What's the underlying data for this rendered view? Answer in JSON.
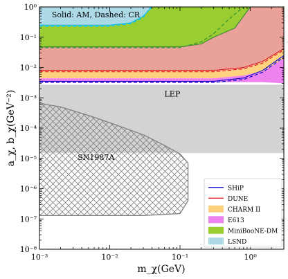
{
  "chart_data": {
    "type": "area",
    "xlabel": "m_χ(GeV)",
    "ylabel": "a_χ, b_χ(GeV⁻²)",
    "x_scale": "log",
    "y_scale": "log",
    "xlim": [
      0.001,
      3.0
    ],
    "ylim": [
      1e-08,
      1
    ],
    "x_ticks": [
      {
        "value": 0.001,
        "label": "10⁻³"
      },
      {
        "value": 0.01,
        "label": "10⁻²"
      },
      {
        "value": 0.1,
        "label": "10⁻¹"
      },
      {
        "value": 1,
        "label": "10⁰"
      }
    ],
    "y_ticks": [
      {
        "value": 1,
        "label": "10⁰"
      },
      {
        "value": 0.1,
        "label": "10⁻¹"
      },
      {
        "value": 0.01,
        "label": "10⁻²"
      },
      {
        "value": 0.001,
        "label": "10⁻³"
      },
      {
        "value": 0.0001,
        "label": "10⁻⁴"
      },
      {
        "value": 1e-05,
        "label": "10⁻⁵"
      },
      {
        "value": 1e-06,
        "label": "10⁻⁶"
      },
      {
        "value": 1e-07,
        "label": "10⁻⁷"
      },
      {
        "value": 1e-08,
        "label": "10⁻⁸"
      }
    ],
    "annotations": [
      {
        "text": "Solid: AM, Dashed: CR",
        "x": 0.0015,
        "y": 0.45
      },
      {
        "text": "LEP",
        "x": 0.06,
        "y": 0.0011
      },
      {
        "text": "SN1987A",
        "x": 0.0035,
        "y": 9e-06
      }
    ],
    "regions": [
      {
        "name": "LEP",
        "legend": false,
        "color": "#d3d3d3",
        "points": [
          [
            0.001,
            0.0027
          ],
          [
            3.0,
            0.0027
          ],
          [
            3.0,
            1.5e-05
          ],
          [
            0.001,
            1.5e-05
          ]
        ]
      },
      {
        "name": "SN1987A",
        "legend": false,
        "color": "#808080",
        "fill": "crosshatch",
        "points": [
          [
            0.001,
            0.00065
          ],
          [
            0.002,
            0.0005
          ],
          [
            0.005,
            0.00026
          ],
          [
            0.01,
            0.00015
          ],
          [
            0.03,
            6e-05
          ],
          [
            0.06,
            2.7e-05
          ],
          [
            0.1,
            1.4e-05
          ],
          [
            0.13,
            7e-06
          ],
          [
            0.13,
            2e-06
          ],
          [
            0.13,
            4e-07
          ],
          [
            0.1,
            1.5e-07
          ],
          [
            0.03,
            1.3e-07
          ],
          [
            0.001,
            1.3e-07
          ]
        ]
      },
      {
        "name": "LSND",
        "legend": true,
        "color": "#add8e6",
        "points": [
          [
            0.001,
            1.0
          ],
          [
            0.04,
            1.0
          ],
          [
            0.03,
            0.5
          ],
          [
            0.02,
            0.3
          ],
          [
            0.01,
            0.25
          ],
          [
            0.001,
            0.25
          ]
        ]
      },
      {
        "name": "MiniBooNE-DM",
        "legend": true,
        "color": "#9acd32",
        "points": [
          [
            0.04,
            1.0
          ],
          [
            1.0,
            1.0
          ],
          [
            0.6,
            0.2
          ],
          [
            0.3,
            0.1
          ],
          [
            0.2,
            0.06
          ],
          [
            0.1,
            0.048
          ],
          [
            0.001,
            0.048
          ],
          [
            0.001,
            0.25
          ],
          [
            0.01,
            0.25
          ],
          [
            0.02,
            0.3
          ],
          [
            0.03,
            0.5
          ]
        ]
      },
      {
        "name": "E613",
        "legend": true,
        "color": "#ee82ee",
        "points": [
          [
            0.001,
            0.0044
          ],
          [
            0.3,
            0.0044
          ],
          [
            0.8,
            0.0055
          ],
          [
            1.5,
            0.0075
          ],
          [
            3.0,
            0.02
          ],
          [
            3.0,
            0.003
          ],
          [
            1.5,
            0.0033
          ],
          [
            1.0,
            0.0033
          ],
          [
            0.001,
            0.0033
          ]
        ]
      },
      {
        "name": "CHARM II",
        "legend": true,
        "color": "#ffd27f",
        "points": [
          [
            0.001,
            0.0075
          ],
          [
            0.3,
            0.0075
          ],
          [
            0.8,
            0.009
          ],
          [
            1.5,
            0.015
          ],
          [
            3.0,
            0.04
          ],
          [
            3.0,
            0.02
          ],
          [
            1.5,
            0.0075
          ],
          [
            0.8,
            0.0055
          ],
          [
            0.3,
            0.0044
          ],
          [
            0.001,
            0.0044
          ]
        ]
      },
      {
        "name": "DUNE",
        "legend": true,
        "color": "#e9a19a",
        "points": [
          [
            0.001,
            0.048
          ],
          [
            0.1,
            0.048
          ],
          [
            0.2,
            0.06
          ],
          [
            0.3,
            0.1
          ],
          [
            0.6,
            0.2
          ],
          [
            1.0,
            1.0
          ],
          [
            3.0,
            1.0
          ],
          [
            3.0,
            0.04
          ],
          [
            1.5,
            0.015
          ],
          [
            0.8,
            0.009
          ],
          [
            0.3,
            0.0075
          ],
          [
            0.001,
            0.0075
          ]
        ]
      }
    ],
    "series": [
      {
        "name": "SHiP",
        "color": "#0000cd",
        "style": "solid",
        "legend": true,
        "points": [
          [
            0.001,
            0.0035
          ],
          [
            0.3,
            0.0035
          ],
          [
            0.8,
            0.0045
          ],
          [
            1.5,
            0.008
          ],
          [
            3.0,
            0.025
          ]
        ]
      },
      {
        "name": "SHiP",
        "color": "#0000cd",
        "style": "dashed",
        "legend": false,
        "points": [
          [
            0.001,
            0.0032
          ],
          [
            0.3,
            0.0032
          ],
          [
            0.8,
            0.004
          ],
          [
            1.5,
            0.007
          ],
          [
            3.0,
            0.022
          ]
        ]
      },
      {
        "name": "DUNE",
        "color": "#e11d1d",
        "style": "solid",
        "legend": false,
        "points": [
          [
            0.001,
            0.008
          ],
          [
            0.3,
            0.008
          ],
          [
            0.8,
            0.01
          ],
          [
            1.5,
            0.016
          ],
          [
            3.0,
            0.042
          ]
        ]
      },
      {
        "name": "DUNE",
        "color": "#e11d1d",
        "style": "dashed",
        "legend": false,
        "points": [
          [
            0.001,
            0.0072
          ],
          [
            0.3,
            0.0072
          ],
          [
            0.8,
            0.009
          ],
          [
            1.5,
            0.014
          ],
          [
            3.0,
            0.038
          ]
        ]
      },
      {
        "name": "MiniBooNE-DM",
        "color": "#2e8b2e",
        "style": "solid",
        "legend": false,
        "points": [
          [
            0.001,
            0.048
          ],
          [
            0.1,
            0.048
          ],
          [
            0.2,
            0.06
          ],
          [
            0.3,
            0.1
          ],
          [
            0.6,
            0.2
          ],
          [
            1.0,
            1.0
          ]
        ]
      },
      {
        "name": "MiniBooNE-DM",
        "color": "#2e8b2e",
        "style": "dashed",
        "legend": false,
        "points": [
          [
            0.001,
            0.045
          ],
          [
            0.1,
            0.045
          ],
          [
            0.2,
            0.07
          ],
          [
            0.3,
            0.13
          ],
          [
            0.5,
            0.4
          ],
          [
            0.8,
            1.0
          ]
        ]
      },
      {
        "name": "LSND",
        "color": "#00bfff",
        "style": "solid",
        "legend": false,
        "points": [
          [
            0.001,
            0.25
          ],
          [
            0.01,
            0.25
          ],
          [
            0.02,
            0.3
          ],
          [
            0.03,
            0.5
          ],
          [
            0.04,
            1.0
          ]
        ]
      },
      {
        "name": "LSND",
        "color": "#00bfff",
        "style": "dashed",
        "legend": false,
        "points": [
          [
            0.001,
            0.23
          ],
          [
            0.01,
            0.23
          ],
          [
            0.02,
            0.28
          ],
          [
            0.03,
            0.45
          ],
          [
            0.038,
            1.0
          ]
        ]
      }
    ],
    "legend": {
      "position": "lower-right",
      "entries": [
        {
          "label": "SHiP",
          "kind": "line",
          "color": "#0000cd"
        },
        {
          "label": "DUNE",
          "kind": "line",
          "color": "#e11d1d"
        },
        {
          "label": "CHARM II",
          "kind": "patch",
          "color": "#ffd27f"
        },
        {
          "label": "E613",
          "kind": "patch",
          "color": "#ee82ee"
        },
        {
          "label": "MiniBooNE-DM",
          "kind": "patch",
          "color": "#9acd32"
        },
        {
          "label": "LSND",
          "kind": "patch",
          "color": "#add8e6"
        }
      ]
    }
  }
}
